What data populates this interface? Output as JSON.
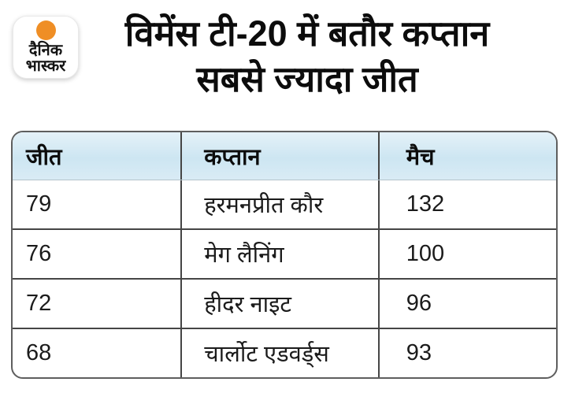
{
  "brand": {
    "name_line1": "दैनिक",
    "name_line2": "भास्कर",
    "dot_color": "#ef8e25"
  },
  "title": {
    "line1": "विमेंस टी-20 में बतौर कप्तान",
    "line2": "सबसे ज्यादा जीत"
  },
  "chart_data": {
    "type": "table",
    "title": "विमेंस टी-20 में बतौर कप्तान सबसे ज्यादा जीत",
    "columns": [
      "जीत",
      "कप्तान",
      "मैच"
    ],
    "rows": [
      [
        "79",
        "हरमनप्रीत कौर",
        "132"
      ],
      [
        "76",
        "मेग लैनिंग",
        "100"
      ],
      [
        "72",
        "हीदर नाइट",
        "96"
      ],
      [
        "68",
        "चार्लोट एडवर्ड्स",
        "93"
      ]
    ]
  },
  "colors": {
    "accent_orange": "#ef8e25",
    "header_gradient_top": "#e4f1f8",
    "header_gradient_bottom": "#cde6f2",
    "grid_border": "#454545",
    "outer_border": "#5e5e5e",
    "title_text": "#0c0c0c",
    "cell_text": "#1b1b1b"
  }
}
